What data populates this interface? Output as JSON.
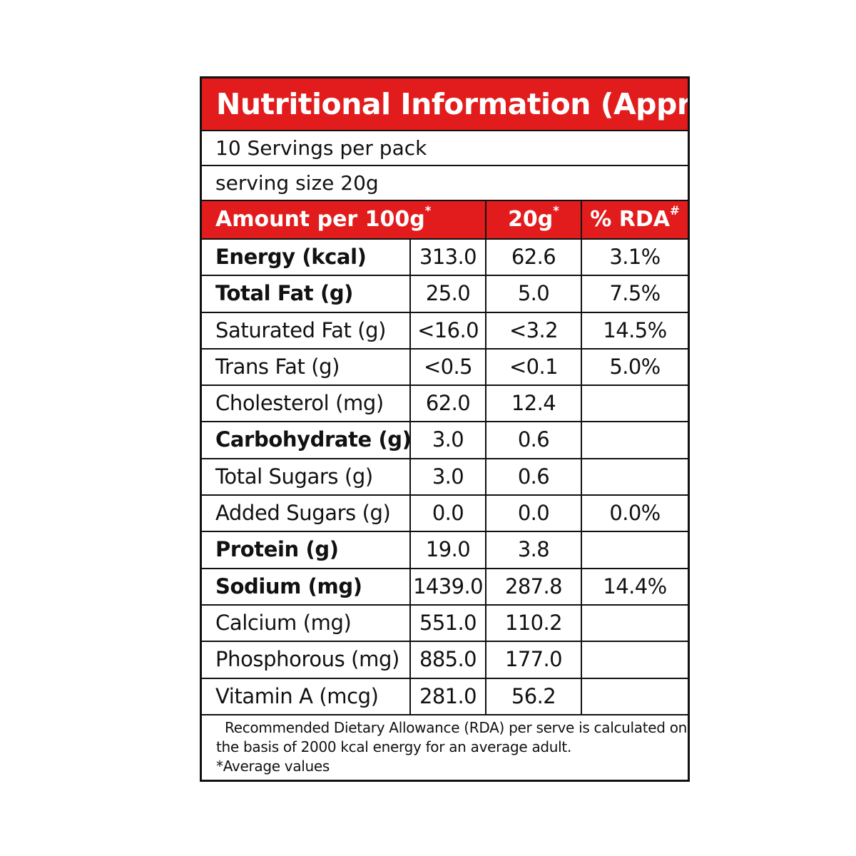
{
  "label": {
    "title": "Nutritional Information (Approx)",
    "servings_per_pack": "10 Servings per pack",
    "serving_size": "serving size 20g",
    "header": {
      "amount_label": "Amount per 100g",
      "amount_mark": "*",
      "serving_label": "20g",
      "serving_mark": "*",
      "rda_label": "% RDA",
      "rda_mark": "#"
    },
    "rows": [
      {
        "name": "Energy (kcal)",
        "per100": "313.0",
        "per20": "62.6",
        "rda": "3.1%",
        "bold": true
      },
      {
        "name": "Total Fat (g)",
        "per100": "25.0",
        "per20": "5.0",
        "rda": "7.5%",
        "bold": true
      },
      {
        "name": "Saturated Fat (g)",
        "per100": "<16.0",
        "per20": "<3.2",
        "rda": "14.5%",
        "bold": false
      },
      {
        "name": "Trans Fat (g)",
        "per100": "<0.5",
        "per20": "<0.1",
        "rda": "5.0%",
        "bold": false
      },
      {
        "name": "Cholesterol (mg)",
        "per100": "62.0",
        "per20": "12.4",
        "rda": "",
        "bold": false
      },
      {
        "name": "Carbohydrate (g)",
        "per100": "3.0",
        "per20": "0.6",
        "rda": "",
        "bold": true
      },
      {
        "name": "Total Sugars (g)",
        "per100": "3.0",
        "per20": "0.6",
        "rda": "",
        "bold": false
      },
      {
        "name": "Added Sugars (g)",
        "per100": "0.0",
        "per20": "0.0",
        "rda": "0.0%",
        "bold": false
      },
      {
        "name": "Protein (g)",
        "per100": "19.0",
        "per20": "3.8",
        "rda": "",
        "bold": true
      },
      {
        "name": "Sodium (mg)",
        "per100": "1439.0",
        "per20": "287.8",
        "rda": "14.4%",
        "bold": true
      },
      {
        "name": "Calcium (mg)",
        "per100": "551.0",
        "per20": "110.2",
        "rda": "",
        "bold": false
      },
      {
        "name": "Phosphorous (mg)",
        "per100": "885.0",
        "per20": "177.0",
        "rda": "",
        "bold": false
      },
      {
        "name": "Vitamin A (mcg)",
        "per100": "281.0",
        "per20": "56.2",
        "rda": "",
        "bold": false
      }
    ],
    "footnote": {
      "line1": "Recommended Dietary Allowance (RDA) per serve is calculated on",
      "line2": "the basis of 2000 kcal energy for an average adult.",
      "line3": "*Average values"
    },
    "colors": {
      "accent": "#e21c1c",
      "border": "#111111",
      "background": "#ffffff"
    }
  }
}
